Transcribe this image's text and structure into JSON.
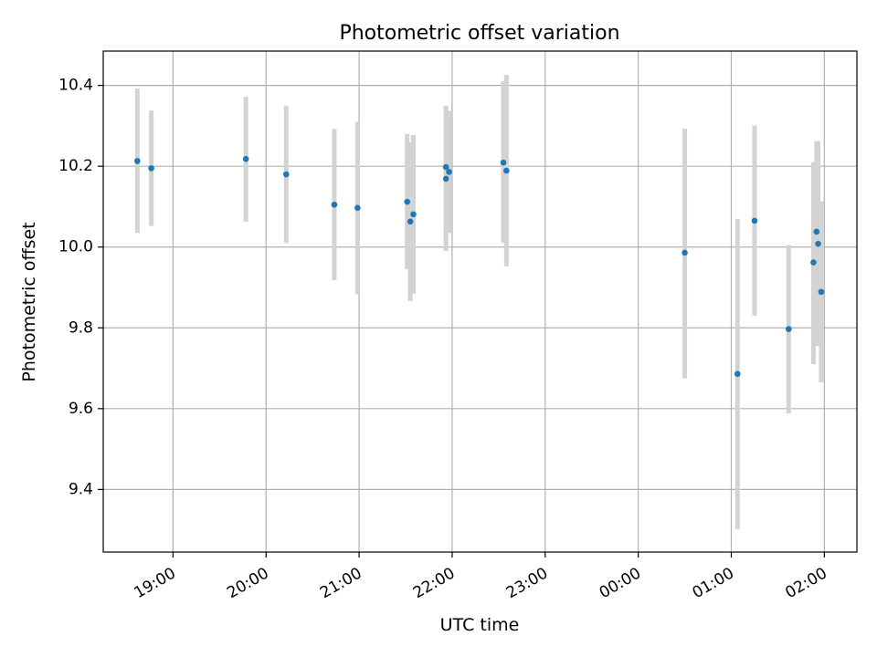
{
  "chart_data": {
    "type": "scatter",
    "title": "Photometric offset variation",
    "xlabel": "UTC time",
    "ylabel": "Photometric offset",
    "xlim": [
      "2023-01-01T18:15",
      "2023-01-02T02:21"
    ],
    "ylim": [
      9.245,
      10.485
    ],
    "x_ticks": [
      {
        "t": "2023-01-01T19:00",
        "label": "19:00"
      },
      {
        "t": "2023-01-01T20:00",
        "label": "20:00"
      },
      {
        "t": "2023-01-01T21:00",
        "label": "21:00"
      },
      {
        "t": "2023-01-01T22:00",
        "label": "22:00"
      },
      {
        "t": "2023-01-01T23:00",
        "label": "23:00"
      },
      {
        "t": "2023-01-02T00:00",
        "label": "00:00"
      },
      {
        "t": "2023-01-02T01:00",
        "label": "01:00"
      },
      {
        "t": "2023-01-02T02:00",
        "label": "02:00"
      }
    ],
    "y_ticks": [
      9.4,
      9.6,
      9.8,
      10.0,
      10.2,
      10.4
    ],
    "grid": true,
    "point_color": "#1f77b4",
    "errorbar_color": "#d3d3d3",
    "points": [
      {
        "t": "2023-01-01T18:37",
        "y": 10.213,
        "lo": 10.035,
        "hi": 10.392
      },
      {
        "t": "2023-01-01T18:46",
        "y": 10.195,
        "lo": 10.052,
        "hi": 10.338
      },
      {
        "t": "2023-01-01T19:47",
        "y": 10.218,
        "lo": 10.063,
        "hi": 10.372
      },
      {
        "t": "2023-01-01T20:13",
        "y": 10.18,
        "lo": 10.01,
        "hi": 10.35
      },
      {
        "t": "2023-01-01T20:44",
        "y": 10.105,
        "lo": 9.918,
        "hi": 10.292
      },
      {
        "t": "2023-01-01T20:59",
        "y": 10.097,
        "lo": 9.883,
        "hi": 10.31
      },
      {
        "t": "2023-01-01T21:31",
        "y": 10.112,
        "lo": 9.945,
        "hi": 10.28
      },
      {
        "t": "2023-01-01T21:33",
        "y": 10.063,
        "lo": 9.866,
        "hi": 10.26
      },
      {
        "t": "2023-01-01T21:35",
        "y": 10.081,
        "lo": 9.885,
        "hi": 10.277
      },
      {
        "t": "2023-01-01T21:56",
        "y": 10.198,
        "lo": 10.045,
        "hi": 10.35
      },
      {
        "t": "2023-01-01T21:56",
        "y": 10.169,
        "lo": 9.99,
        "hi": 10.347
      },
      {
        "t": "2023-01-01T21:58",
        "y": 10.186,
        "lo": 10.035,
        "hi": 10.337
      },
      {
        "t": "2023-01-01T22:33",
        "y": 10.209,
        "lo": 10.01,
        "hi": 10.41
      },
      {
        "t": "2023-01-01T22:35",
        "y": 10.189,
        "lo": 9.952,
        "hi": 10.426
      },
      {
        "t": "2023-01-02T00:30",
        "y": 9.986,
        "lo": 9.675,
        "hi": 10.293
      },
      {
        "t": "2023-01-02T01:04",
        "y": 9.686,
        "lo": 9.302,
        "hi": 10.07
      },
      {
        "t": "2023-01-02T01:15",
        "y": 10.065,
        "lo": 9.83,
        "hi": 10.301
      },
      {
        "t": "2023-01-02T01:37",
        "y": 9.797,
        "lo": 9.588,
        "hi": 10.005
      },
      {
        "t": "2023-01-02T01:53",
        "y": 9.962,
        "lo": 9.71,
        "hi": 10.21
      },
      {
        "t": "2023-01-02T01:55",
        "y": 10.038,
        "lo": 9.815,
        "hi": 10.262
      },
      {
        "t": "2023-01-02T01:56",
        "y": 10.008,
        "lo": 9.755,
        "hi": 10.262
      },
      {
        "t": "2023-01-02T01:58",
        "y": 9.889,
        "lo": 9.665,
        "hi": 10.113
      }
    ]
  }
}
